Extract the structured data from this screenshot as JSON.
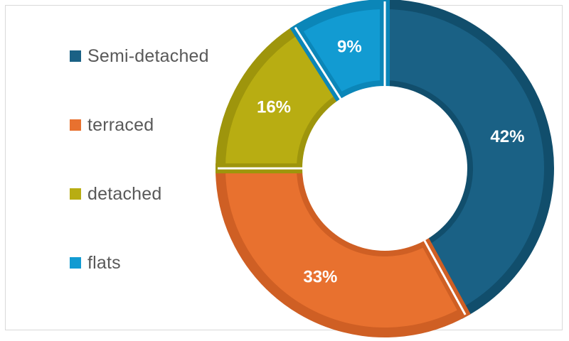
{
  "chart_data": {
    "type": "pie",
    "style": "donut",
    "legend_position": "left",
    "categories": [
      "Semi-detached",
      "terraced",
      "detached",
      "flats"
    ],
    "values": [
      42,
      33,
      16,
      9
    ],
    "data_labels": [
      "42%",
      "33%",
      "16%",
      "9%"
    ],
    "colors": [
      "#1a6185",
      "#e8712f",
      "#b8ad12",
      "#129bd2"
    ],
    "slice_border_colors": [
      "#114e6c",
      "#cf5f24",
      "#9e950c",
      "#0b86b8"
    ]
  }
}
